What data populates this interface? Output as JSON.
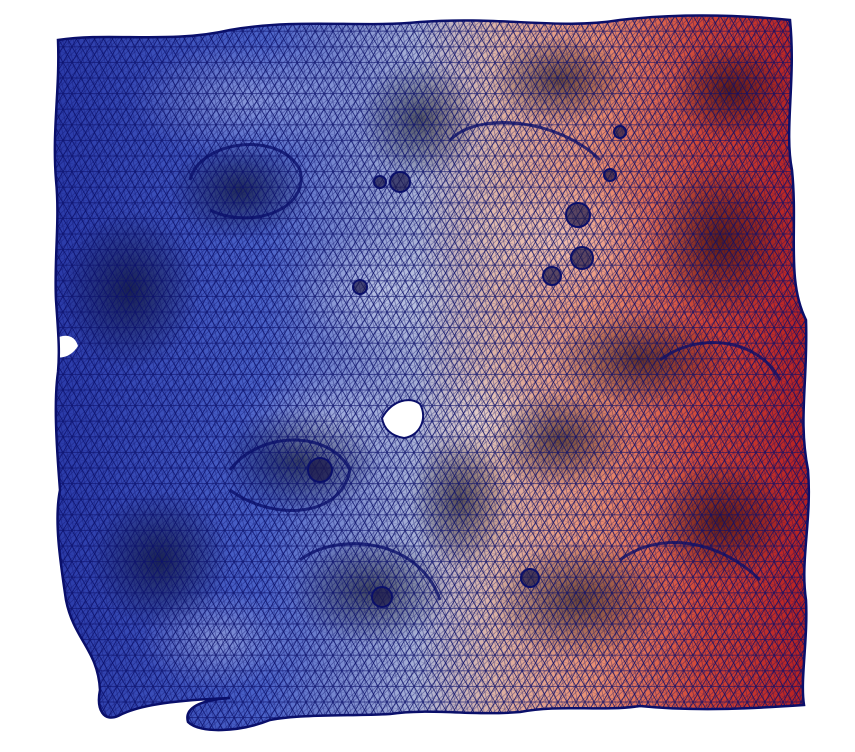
{
  "scene": {
    "subject": "porous-mesh-surface",
    "colormap": [
      "#22309a",
      "#3f56c4",
      "#8fa0d8",
      "#c9c4c8",
      "#e8a085",
      "#d8553f",
      "#b01e22"
    ],
    "edge_color": "#0a0f6a",
    "background": "#ffffff"
  }
}
